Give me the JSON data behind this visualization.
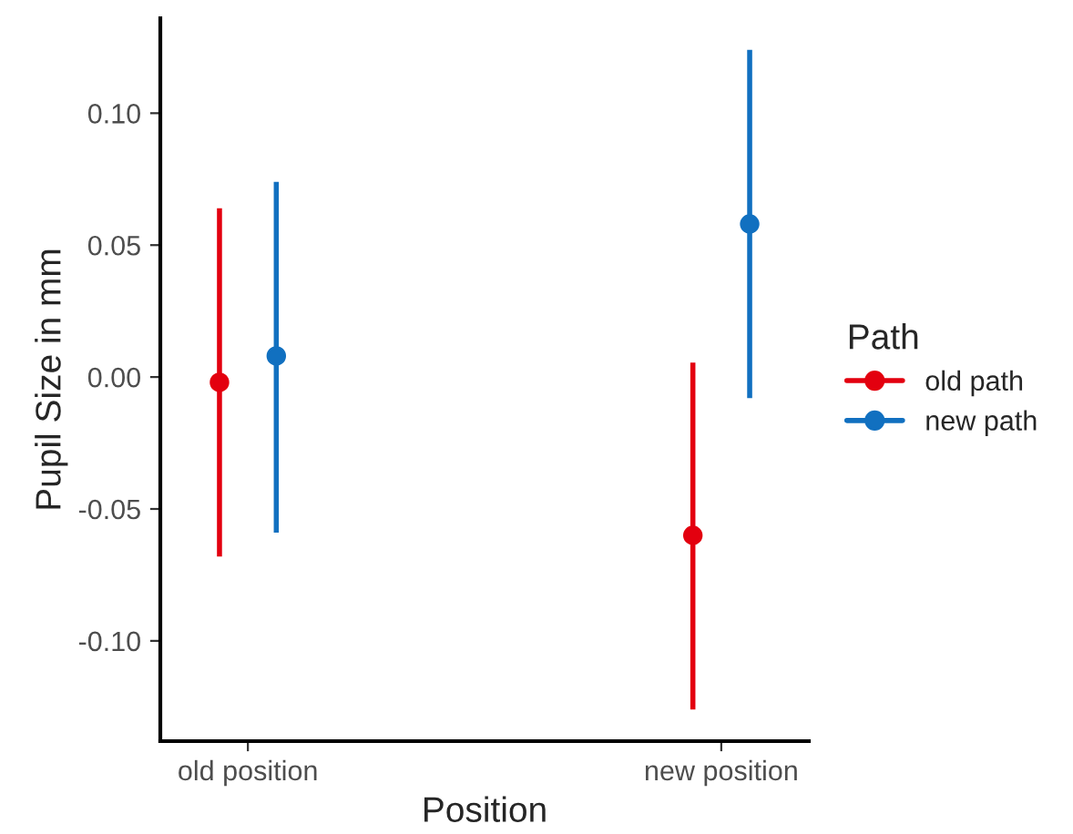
{
  "chart_data": {
    "type": "scatter",
    "xlabel": "Position",
    "ylabel": "Pupil Size in mm",
    "legend_title": "Path",
    "categories": [
      "old position",
      "new position"
    ],
    "series": [
      {
        "name": "old path",
        "color": "#e3000f",
        "values": [
          -0.002,
          -0.06
        ],
        "errors": [
          [
            -0.068,
            0.064
          ],
          [
            -0.126,
            0.0055
          ]
        ]
      },
      {
        "name": "new path",
        "color": "#1170c0",
        "values": [
          0.008,
          0.058
        ],
        "errors": [
          [
            -0.059,
            0.074
          ],
          [
            -0.008,
            0.124
          ]
        ]
      }
    ],
    "ylim": [
      -0.138,
      0.136
    ],
    "yticks": [
      {
        "value": -0.1,
        "label": "-0.10"
      },
      -0.05,
      {
        "value": 0.0,
        "label": "0.00"
      },
      0.05,
      {
        "value": 0.1,
        "label": "0.10"
      }
    ],
    "grid": false,
    "legend": "right",
    "marker": "circle"
  }
}
